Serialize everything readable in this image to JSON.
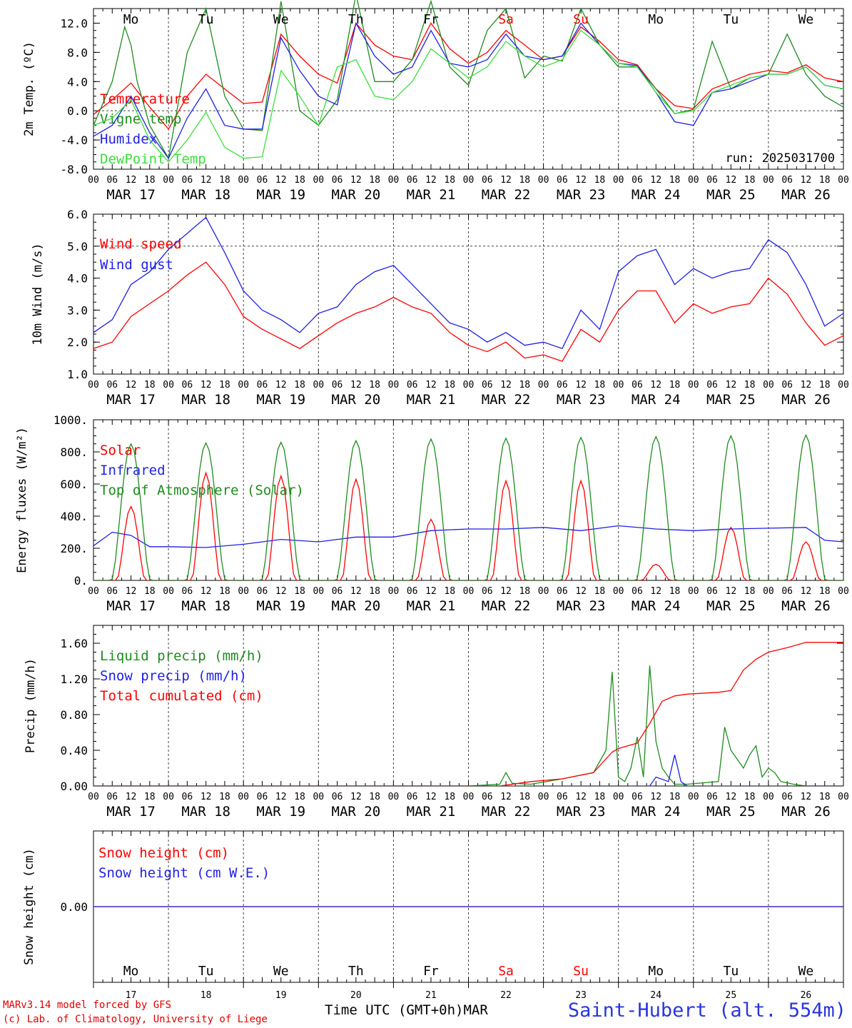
{
  "footer": {
    "model": "MARv3.14 model forced by GFS",
    "copyright": "(c) Lab. of Climatology, University of Liege",
    "time_axis_label": "Time UTC (GMT+0h)",
    "month": "MAR",
    "station": "Saint-Hubert (alt. 554m)"
  },
  "days": [
    {
      "dow": "Mo",
      "date": "MAR 17",
      "num": "17",
      "weekend": false
    },
    {
      "dow": "Tu",
      "date": "MAR 18",
      "num": "18",
      "weekend": false
    },
    {
      "dow": "We",
      "date": "MAR 19",
      "num": "19",
      "weekend": false
    },
    {
      "dow": "Th",
      "date": "MAR 20",
      "num": "20",
      "weekend": false
    },
    {
      "dow": "Fr",
      "date": "MAR 21",
      "num": "21",
      "weekend": false
    },
    {
      "dow": "Sa",
      "date": "MAR 22",
      "num": "22",
      "weekend": true
    },
    {
      "dow": "Su",
      "date": "MAR 23",
      "num": "23",
      "weekend": true
    },
    {
      "dow": "Mo",
      "date": "MAR 24",
      "num": "24",
      "weekend": false
    },
    {
      "dow": "Tu",
      "date": "MAR 25",
      "num": "25",
      "weekend": false
    },
    {
      "dow": "We",
      "date": "MAR 26",
      "num": "26",
      "weekend": false
    }
  ],
  "hour_ticks": [
    "00",
    "06",
    "12",
    "18"
  ],
  "colors": {
    "red": "#ff0000",
    "green": "#1e8c1e",
    "blue": "#1f1fe8",
    "lightgreen": "#3ce03c",
    "weekend": "#ff0000",
    "station": "#2a35e0"
  },
  "chart_data": [
    {
      "type": "line",
      "id": "temp",
      "ylabel": "2m Temp. (ºC)",
      "ylim": [
        -8,
        14
      ],
      "yticks": [
        "-8.0",
        "-4.0",
        "0.0",
        "4.0",
        "8.0",
        "12.0"
      ],
      "ytick_values": [
        -8,
        -4,
        0,
        4,
        8,
        12
      ],
      "run_label": "run: 2025031700",
      "x_unit": "hours since MAR 17 00 UTC",
      "series": [
        {
          "name": "Temperature",
          "color": "red",
          "x": [
            0,
            6,
            12,
            18,
            24,
            30,
            36,
            42,
            48,
            54,
            60,
            66,
            72,
            78,
            84,
            90,
            96,
            102,
            108,
            114,
            120,
            126,
            132,
            138,
            144,
            150,
            156,
            162,
            168,
            174,
            180,
            186,
            192,
            198,
            204,
            210,
            216,
            222,
            228,
            234,
            240
          ],
          "y": [
            -0.5,
            1.5,
            3.8,
            0.5,
            -2.5,
            2,
            5,
            3,
            1,
            1.2,
            10.5,
            7.5,
            5,
            3.8,
            12,
            9,
            7.5,
            7,
            12,
            8.5,
            6.5,
            8,
            11,
            9,
            7,
            7.5,
            11.5,
            9.5,
            7,
            6.3,
            3,
            0.7,
            0.3,
            3,
            4,
            5,
            5.5,
            5.2,
            6.3,
            4.5,
            4
          ]
        },
        {
          "name": "Vigne temp",
          "color": "green",
          "x": [
            0,
            6,
            10,
            12,
            14,
            18,
            24,
            30,
            36,
            42,
            48,
            54,
            60,
            66,
            72,
            78,
            84,
            90,
            96,
            102,
            108,
            114,
            120,
            126,
            132,
            138,
            144,
            150,
            156,
            162,
            168,
            174,
            180,
            186,
            192,
            198,
            204,
            210,
            216,
            222,
            228,
            234,
            240
          ],
          "y": [
            -2,
            4,
            11.5,
            9,
            4,
            -2,
            -6.5,
            8,
            14,
            2,
            -2.5,
            -2.7,
            15,
            0,
            -2,
            1.5,
            16,
            4,
            4,
            7,
            15,
            6,
            3.5,
            11,
            14,
            4.5,
            7.5,
            6.8,
            14,
            9,
            6,
            6,
            3,
            -0.4,
            0.2,
            9.5,
            3,
            4.5,
            5,
            10.5,
            5,
            2,
            0.5
          ]
        },
        {
          "name": "Humidex",
          "color": "blue",
          "x": [
            0,
            6,
            12,
            18,
            24,
            30,
            36,
            42,
            48,
            54,
            60,
            66,
            72,
            78,
            84,
            90,
            96,
            102,
            108,
            114,
            120,
            126,
            132,
            138,
            144,
            150,
            156,
            162,
            168,
            174,
            180,
            186,
            192,
            198,
            204,
            210,
            216,
            222,
            228,
            234,
            240
          ],
          "y": [
            -3.5,
            -2,
            2,
            -3,
            -6.5,
            -1,
            3,
            -2,
            -2.5,
            -2.5,
            10,
            5.5,
            2,
            0.8,
            12,
            7.5,
            5,
            6,
            11,
            6.5,
            6,
            7,
            10.5,
            7.5,
            7,
            7.5,
            12,
            9,
            6.5,
            6.2,
            2.5,
            -1.5,
            -2,
            2.5,
            3,
            4,
            5,
            5,
            6,
            3.5,
            3
          ]
        },
        {
          "name": "DewPoint Temp",
          "color": "lightgreen",
          "x": [
            0,
            6,
            12,
            18,
            24,
            30,
            36,
            42,
            48,
            54,
            60,
            66,
            72,
            78,
            84,
            90,
            96,
            102,
            108,
            114,
            120,
            126,
            132,
            138,
            144,
            150,
            156,
            162,
            168,
            174,
            180,
            186,
            192,
            198,
            204,
            210,
            216,
            222,
            228,
            234,
            240
          ],
          "y": [
            -2,
            -1,
            1.5,
            -4,
            -7,
            -4,
            -0.2,
            -5,
            -6.5,
            -6.3,
            5.5,
            2,
            -2,
            6,
            7,
            2,
            1.5,
            4,
            8.5,
            6.5,
            4.5,
            6,
            9.5,
            7.5,
            6,
            7,
            11,
            9,
            6.5,
            6,
            2.5,
            -0.4,
            0,
            2.5,
            3.5,
            4.5,
            5,
            5,
            6,
            3.5,
            3
          ]
        }
      ]
    },
    {
      "type": "line",
      "id": "wind",
      "ylabel": "10m Wind (m/s)",
      "ylim": [
        1.0,
        6.0
      ],
      "yticks": [
        "1.0",
        "2.0",
        "3.0",
        "4.0",
        "5.0",
        "6.0"
      ],
      "ytick_values": [
        1,
        2,
        3,
        4,
        5,
        6
      ],
      "x_unit": "hours since MAR 17 00 UTC",
      "series": [
        {
          "name": "Wind speed",
          "color": "red",
          "x": [
            0,
            6,
            12,
            18,
            24,
            30,
            36,
            42,
            48,
            54,
            60,
            66,
            72,
            78,
            84,
            90,
            96,
            102,
            108,
            114,
            120,
            126,
            132,
            138,
            144,
            150,
            156,
            162,
            168,
            174,
            180,
            186,
            192,
            198,
            204,
            210,
            216,
            222,
            228,
            234,
            240
          ],
          "y": [
            1.8,
            2,
            2.8,
            3.2,
            3.6,
            4.1,
            4.5,
            3.8,
            2.8,
            2.4,
            2.1,
            1.8,
            2.2,
            2.6,
            2.9,
            3.1,
            3.4,
            3.1,
            2.9,
            2.3,
            1.9,
            1.7,
            2,
            1.5,
            1.6,
            1.4,
            2.4,
            2.0,
            3.0,
            3.6,
            3.6,
            2.6,
            3.2,
            2.9,
            3.1,
            3.2,
            4.0,
            3.5,
            2.6,
            1.9,
            2.2
          ]
        },
        {
          "name": "Wind gust",
          "color": "blue",
          "x": [
            0,
            6,
            12,
            18,
            24,
            30,
            36,
            42,
            48,
            54,
            60,
            66,
            72,
            78,
            84,
            90,
            96,
            102,
            108,
            114,
            120,
            126,
            132,
            138,
            144,
            150,
            156,
            162,
            168,
            174,
            180,
            186,
            192,
            198,
            204,
            210,
            216,
            222,
            228,
            234,
            240
          ],
          "y": [
            2.3,
            2.7,
            3.8,
            4.2,
            4.9,
            5.4,
            5.9,
            4.8,
            3.6,
            3.0,
            2.7,
            2.3,
            2.9,
            3.1,
            3.8,
            4.2,
            4.4,
            3.8,
            3.2,
            2.6,
            2.4,
            2.0,
            2.3,
            1.9,
            2.0,
            1.8,
            3.0,
            2.4,
            4.2,
            4.7,
            4.9,
            3.8,
            4.3,
            4.0,
            4.2,
            4.3,
            5.2,
            4.8,
            3.8,
            2.5,
            2.9
          ]
        }
      ]
    },
    {
      "type": "line",
      "id": "energy",
      "ylabel": "Energy fluxes (W/m²)",
      "ylim": [
        0,
        1000
      ],
      "yticks": [
        "0.",
        "200.",
        "400.",
        "600.",
        "800.",
        "1000."
      ],
      "ytick_values": [
        0,
        200,
        400,
        600,
        800,
        1000
      ],
      "x_unit": "hours since MAR 17 00 UTC",
      "series": [
        {
          "name": "Solar",
          "color": "red",
          "diurnal_peaks": [
            460,
            670,
            650,
            630,
            380,
            620,
            620,
            100,
            330,
            240
          ]
        },
        {
          "name": "Infrared",
          "color": "blue",
          "x": [
            0,
            6,
            12,
            18,
            24,
            36,
            48,
            60,
            72,
            84,
            96,
            108,
            120,
            132,
            144,
            156,
            168,
            180,
            192,
            204,
            216,
            228,
            234,
            240
          ],
          "y": [
            215,
            300,
            280,
            210,
            210,
            205,
            225,
            255,
            240,
            270,
            270,
            310,
            320,
            320,
            330,
            310,
            340,
            320,
            310,
            320,
            325,
            330,
            250,
            240
          ]
        },
        {
          "name": "Top of Atmosphere (Solar)",
          "color": "green",
          "diurnal_peaks": [
            850,
            855,
            860,
            870,
            880,
            885,
            890,
            895,
            900,
            905
          ]
        }
      ]
    },
    {
      "type": "line",
      "id": "precip",
      "ylabel": "Precip (mm/h)",
      "ylim": [
        0,
        1.8
      ],
      "yticks": [
        "0.00",
        "0.40",
        "0.80",
        "1.20",
        "1.60"
      ],
      "ytick_values": [
        0,
        0.4,
        0.8,
        1.2,
        1.6
      ],
      "x_unit": "hours since MAR 17 00 UTC",
      "series": [
        {
          "name": "Liquid precip (mm/h)",
          "color": "green",
          "x": [
            0,
            120,
            130,
            132,
            134,
            140,
            150,
            160,
            164,
            166,
            168,
            170,
            172,
            174,
            176,
            178,
            180,
            182,
            184,
            186,
            190,
            200,
            202,
            204,
            206,
            208,
            210,
            212,
            214,
            216,
            218,
            220,
            224,
            226,
            228,
            232,
            240
          ],
          "y": [
            0,
            0,
            0.02,
            0.15,
            0.03,
            0.02,
            0.08,
            0.15,
            0.4,
            1.28,
            0.1,
            0.05,
            0.2,
            0.55,
            0.1,
            1.35,
            0.5,
            0.2,
            0.1,
            0.02,
            0.02,
            0.05,
            0.66,
            0.4,
            0.3,
            0.2,
            0.35,
            0.45,
            0.1,
            0.2,
            0.15,
            0.05,
            0.02,
            0.01,
            0,
            0,
            0
          ]
        },
        {
          "name": "Snow precip (mm/h)",
          "color": "blue",
          "x": [
            0,
            178,
            180,
            184,
            186,
            188,
            190,
            240
          ],
          "y": [
            0,
            0,
            0.1,
            0.05,
            0.35,
            0.05,
            0,
            0
          ]
        },
        {
          "name": "Total cumulated (cm)",
          "color": "red",
          "x": [
            0,
            130,
            140,
            150,
            160,
            166,
            168,
            174,
            178,
            182,
            186,
            190,
            200,
            204,
            208,
            212,
            216,
            222,
            228,
            234,
            240
          ],
          "y": [
            0,
            0,
            0.05,
            0.08,
            0.15,
            0.38,
            0.42,
            0.48,
            0.7,
            0.95,
            1.01,
            1.03,
            1.05,
            1.07,
            1.3,
            1.42,
            1.5,
            1.55,
            1.61,
            1.61,
            1.61
          ]
        }
      ]
    },
    {
      "type": "line",
      "id": "snow",
      "ylabel": "Snow height (cm)",
      "ylim": [
        -1,
        1
      ],
      "yticks": [
        "0.00"
      ],
      "ytick_values": [
        0
      ],
      "x_unit": "hours since MAR 17 00 UTC",
      "series": [
        {
          "name": "Snow height (cm)",
          "color": "red",
          "x": [
            0,
            240
          ],
          "y": [
            0,
            0
          ]
        },
        {
          "name": "Snow height (cm W.E.)",
          "color": "blue",
          "x": [
            0,
            240
          ],
          "y": [
            0,
            0
          ]
        }
      ]
    }
  ]
}
